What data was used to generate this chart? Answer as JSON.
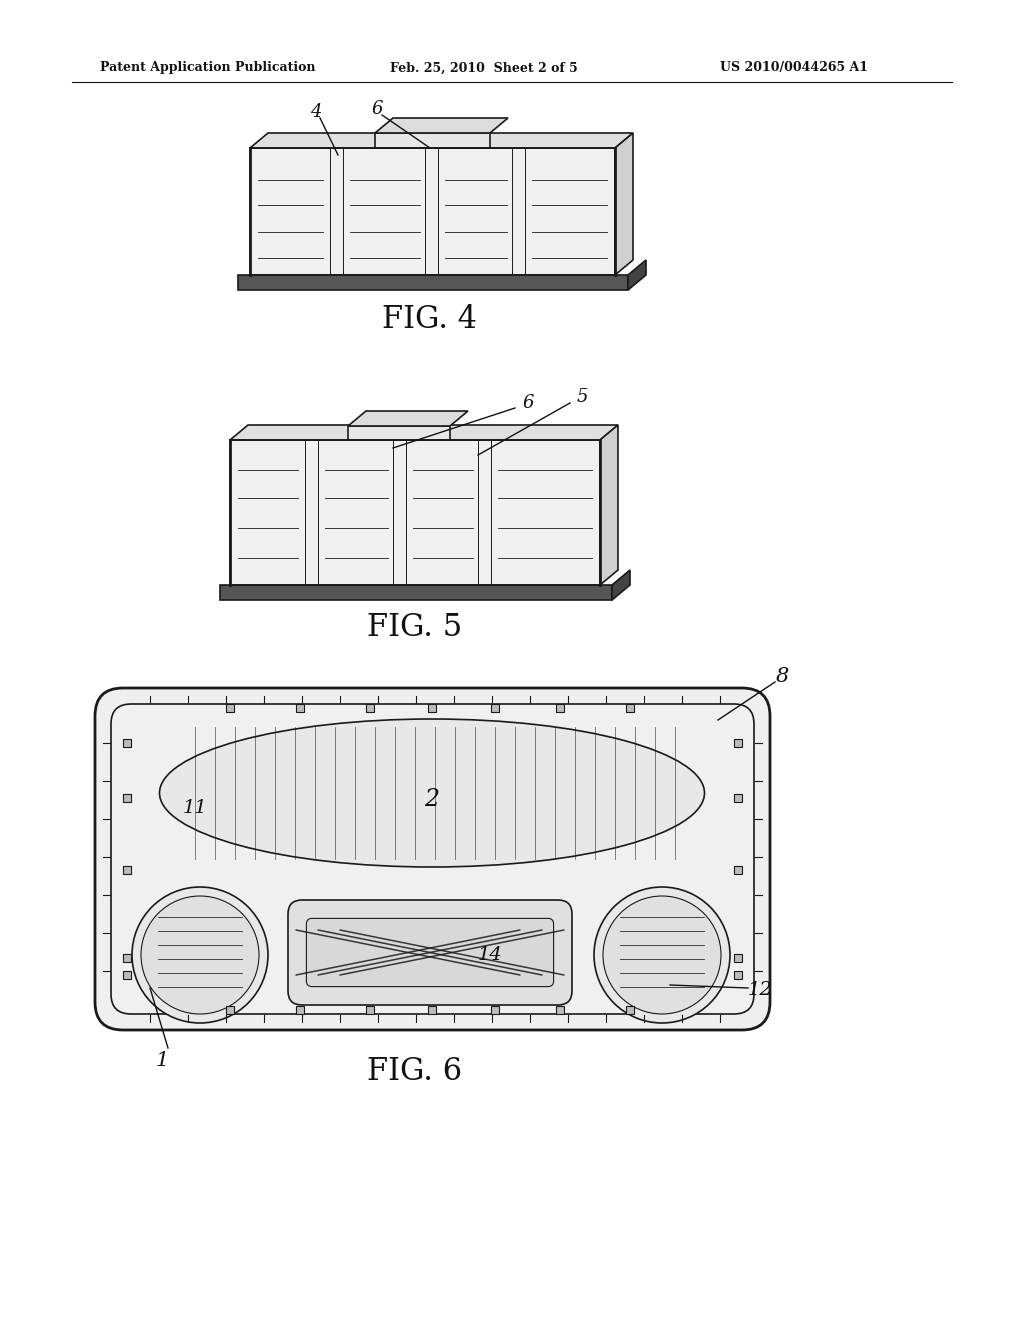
{
  "background_color": "#ffffff",
  "header_left": "Patent Application Publication",
  "header_mid": "Feb. 25, 2010  Sheet 2 of 5",
  "header_right": "US 2010/0044265 A1",
  "fig4_label": "FIG. 4",
  "fig5_label": "FIG. 5",
  "fig6_label": "FIG. 6",
  "label_4": "4",
  "label_6a": "6",
  "label_6b": "6",
  "label_5": "5",
  "label_2": "2",
  "label_8": "8",
  "label_12": "12",
  "label_14": "14",
  "label_11": "11",
  "label_1": "1"
}
